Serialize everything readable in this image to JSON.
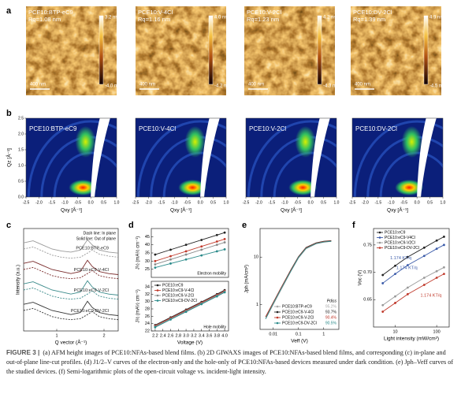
{
  "afm": {
    "panel": "a",
    "images": [
      {
        "label": "PCE10:BTP-eC9",
        "rq": "Rq=1.08 nm",
        "max": "3.2 nm",
        "min": "-4.0 nm",
        "scale": "400 nm"
      },
      {
        "label": "PCE10:V-4Cl",
        "rq": "Rq=1.16 nm",
        "max": "4.0 nm",
        "min": "-4.2 nm",
        "scale": "400 nm"
      },
      {
        "label": "PCE10:V-2Cl",
        "rq": "Rq=1.23 nm",
        "max": "4.2 nm",
        "min": "-4.3 nm",
        "scale": "400 nm"
      },
      {
        "label": "PCE10:DV-2Cl",
        "rq": "Rq=1.39 nm",
        "max": "4.9 nm",
        "min": "-4.5 nm",
        "scale": "400 nm"
      }
    ]
  },
  "giwaxs": {
    "panel": "b",
    "xlabel": "Qxy [Å⁻¹]",
    "ylabel": "Qz [Å⁻¹]",
    "xlim": [
      -2.5,
      1.0
    ],
    "ylim": [
      0,
      2.5
    ],
    "xticks": [
      -2.5,
      {
        "value": -2,
        "label": "-2.0"
      },
      -1.5,
      {
        "value": -1,
        "label": "-1.0"
      },
      -0.5,
      {
        "value": 0,
        "label": "0.0"
      },
      0.5,
      {
        "value": 1,
        "label": "1.0"
      }
    ],
    "yticks": [
      {
        "value": 0,
        "label": "0.0"
      },
      0.5,
      {
        "value": 1,
        "label": "1.0"
      },
      1.5,
      {
        "value": 2,
        "label": "2.0"
      },
      2.5
    ],
    "images": [
      "PCE10:BTP-eC9",
      "PCE10:V-4Cl",
      "PCE10:V-2Cl",
      "PCE10:DV-2Cl"
    ]
  },
  "chart_data": [
    {
      "type": "line",
      "panel": "c",
      "xlabel": "Q vector (Å⁻¹)",
      "ylabel": "Intensity (a.u.)",
      "legend": "inline",
      "notes": [
        "Dash line: In plane",
        "Solid line: Out of plane"
      ],
      "x": [
        0.3,
        0.5,
        0.7,
        0.9,
        1.1,
        1.3,
        1.5,
        1.65,
        1.75,
        1.9,
        2.1,
        2.3
      ],
      "xlim": [
        0.3,
        2.3
      ],
      "xticks": [
        1,
        2
      ],
      "ylim": [
        0,
        10
      ],
      "series": [
        {
          "name": "PCE10:BTP-eC9",
          "color": "#9a9a9a",
          "values": [
            8.6,
            8.8,
            8.4,
            8.0,
            7.8,
            7.7,
            7.9,
            8.9,
            8.4,
            7.9,
            7.7,
            7.6
          ]
        },
        {
          "color": "#9a9a9a",
          "dash": true,
          "values": [
            8.0,
            8.2,
            7.8,
            7.4,
            7.2,
            7.1,
            7.2,
            7.6,
            7.9,
            7.5,
            7.3,
            7.2
          ]
        },
        {
          "name": "PCE10:eC9-V-4Cl",
          "color": "#7a2b2b",
          "values": [
            6.6,
            6.8,
            6.4,
            6.0,
            5.8,
            5.6,
            5.8,
            6.9,
            6.3,
            5.8,
            5.6,
            5.5
          ]
        },
        {
          "color": "#7a2b2b",
          "dash": true,
          "values": [
            6.0,
            6.2,
            5.8,
            5.4,
            5.2,
            5.1,
            5.2,
            5.6,
            5.9,
            5.4,
            5.2,
            5.1
          ]
        },
        {
          "name": "PCE10:eC9-V-2Cl",
          "color": "#3a8a8a",
          "values": [
            4.6,
            4.8,
            4.4,
            4.0,
            3.8,
            3.6,
            3.8,
            4.9,
            4.3,
            3.8,
            3.6,
            3.5
          ]
        },
        {
          "color": "#3a8a8a",
          "dash": true,
          "values": [
            4.0,
            4.2,
            3.8,
            3.4,
            3.2,
            3.1,
            3.2,
            3.6,
            3.9,
            3.4,
            3.2,
            3.1
          ]
        },
        {
          "name": "PCE10:eC9-DV-2Cl",
          "color": "#333333",
          "values": [
            2.6,
            2.8,
            2.4,
            2.0,
            1.8,
            1.6,
            1.8,
            2.9,
            2.3,
            1.8,
            1.6,
            1.5
          ]
        },
        {
          "color": "#333333",
          "dash": true,
          "values": [
            2.0,
            2.2,
            1.8,
            1.4,
            1.2,
            1.1,
            1.2,
            1.6,
            1.9,
            1.4,
            1.2,
            1.1
          ]
        }
      ]
    },
    {
      "type": "line",
      "panel": "d",
      "ylabel": "J½ (mA½ cm⁻¹)",
      "markers": true,
      "notes": [
        "Electron mobility"
      ],
      "x": [
        2.2,
        2.6,
        3.0,
        3.4,
        3.8,
        4.0
      ],
      "xlim": [
        2.1,
        4.1
      ],
      "ylim": [
        20,
        50
      ],
      "yticks": [
        25,
        30,
        35,
        40,
        45
      ],
      "series": [
        {
          "color": "#222222",
          "values": [
            34,
            37,
            40,
            43,
            46,
            47.5
          ]
        },
        {
          "color": "#c0392b",
          "values": [
            30,
            33,
            36,
            39,
            42,
            43.5
          ]
        },
        {
          "color": "#888888",
          "values": [
            28,
            31,
            34,
            37,
            40,
            41.5
          ]
        },
        {
          "color": "#2a8a8a",
          "values": [
            26,
            28.5,
            31,
            33.5,
            36,
            37.2
          ]
        }
      ]
    },
    {
      "type": "line",
      "xlabel": "Voltage (V)",
      "ylabel": "J½ (mA½ cm⁻¹)",
      "markers": true,
      "legend": "upper left",
      "notes": [
        "Hole mobility"
      ],
      "x": [
        2.2,
        2.6,
        3.0,
        3.4,
        3.8,
        4.0
      ],
      "xlim": [
        2.1,
        4.1
      ],
      "ylim": [
        22,
        35.5
      ],
      "yticks": [
        22,
        24,
        26,
        28,
        30,
        32,
        34
      ],
      "xticks": [
        2.2,
        2.4,
        2.6,
        2.8,
        {
          "value": 3,
          "label": "3.0"
        },
        3.2,
        3.4,
        3.6,
        3.8,
        {
          "value": 4,
          "label": "4.0"
        }
      ],
      "series": [
        {
          "name": "PCE10:eC9",
          "color": "#222222",
          "values": [
            23.6,
            25.7,
            27.8,
            29.9,
            32.0,
            33.1
          ]
        },
        {
          "name": "PCE10:eC9-V-4Cl",
          "color": "#c0392b",
          "values": [
            23.4,
            25.5,
            27.6,
            29.7,
            31.8,
            32.9
          ]
        },
        {
          "name": "PCE10:eC9-V-2Cl",
          "color": "#888888",
          "values": [
            23.2,
            25.3,
            27.4,
            29.5,
            31.6,
            32.7
          ]
        },
        {
          "name": "PCE10:eC9-DV-2Cl",
          "color": "#2a8a8a",
          "values": [
            23.0,
            25.1,
            27.2,
            29.3,
            31.4,
            32.5
          ]
        }
      ]
    },
    {
      "type": "line",
      "panel": "e",
      "xlabel": "Veff (V)",
      "ylabel": "Jph (mA/cm²)",
      "xlog": true,
      "ylog": true,
      "legend": "lower right",
      "legend_notes_title": "Pdiss",
      "legend_notes": [
        "95.2%",
        "93.7%",
        "90.4%",
        "90.5%"
      ],
      "x": [
        0.005,
        0.01,
        0.02,
        0.05,
        0.1,
        0.2,
        0.5,
        1,
        2
      ],
      "xlim": [
        0.003,
        4
      ],
      "ylim": [
        0.3,
        40
      ],
      "xticks": [
        0.01,
        0.1,
        1
      ],
      "yticks": [
        1,
        10
      ],
      "series": [
        {
          "name": "PCE10:BTP-eC9",
          "color": "#aaaaaa",
          "values": [
            0.5,
            1.0,
            2.0,
            5.0,
            9.5,
            15,
            19,
            20.5,
            21.5
          ]
        },
        {
          "name": "PCE10:eC9-V-4Cl",
          "color": "#222222",
          "values": [
            0.55,
            1.1,
            2.2,
            5.4,
            10.2,
            16,
            20,
            21.5,
            22.3
          ]
        },
        {
          "name": "PCE10:eC9-V-2Cl",
          "color": "#c0392b",
          "values": [
            0.55,
            1.1,
            2.2,
            5.3,
            10,
            15.7,
            19.7,
            21.2,
            22
          ]
        },
        {
          "name": "PCE10:eC9-DV-2Cl",
          "color": "#2a8a8a",
          "values": [
            0.5,
            1.05,
            2.1,
            5.1,
            9.8,
            15.3,
            19.3,
            20.8,
            21.6
          ]
        }
      ]
    },
    {
      "type": "line",
      "panel": "f",
      "xlabel": "Light intensity (mW/cm²)",
      "ylabel": "Voc (V)",
      "xlog": true,
      "markers": true,
      "legend": "upper left",
      "annotations": [
        {
          "text": "1.174 KT/q",
          "color": "#3b5ba9"
        },
        {
          "text": "1.174 KT/q",
          "color": "#3b5ba9"
        },
        {
          "text": "1.174 KT/q",
          "color": "#c0392b"
        }
      ],
      "x": [
        5,
        10,
        20,
        50,
        100,
        150
      ],
      "xlim": [
        3,
        200
      ],
      "ylim": [
        0.6,
        0.78
      ],
      "xticks": [
        10,
        100
      ],
      "yticks": [
        0.65,
        {
          "value": 0.7,
          "label": "0.70"
        },
        0.75
      ],
      "series": [
        {
          "name": "PCE10:eC9",
          "color": "#222222",
          "values": [
            0.695,
            0.712,
            0.728,
            0.745,
            0.758,
            0.765
          ]
        },
        {
          "name": "PCE10:eC9-V4Cl",
          "color": "#3b5ba9",
          "values": [
            0.68,
            0.697,
            0.713,
            0.73,
            0.743,
            0.75
          ]
        },
        {
          "name": "PCE10:eC9-V2Cl",
          "color": "#999999",
          "values": [
            0.64,
            0.656,
            0.672,
            0.69,
            0.702,
            0.709
          ]
        },
        {
          "name": "PCE10:eC9-DV-2Cl",
          "color": "#c0392b",
          "values": [
            0.628,
            0.644,
            0.66,
            0.677,
            0.69,
            0.697
          ]
        }
      ]
    }
  ],
  "caption": {
    "label": "FIGURE 3 |",
    "text": "(a) AFM height images of PCE10:NFAs-based blend films. (b) 2D GIWAXS images of PCE10:NFAs-based blend films, and corresponding (c) in-plane and out-of-plane line-cut profiles. (d) J1/2–V curves of the electron-only and the hole-only of PCE10:NFAs-based devices measured under dark condition. (e) Jph–Veff curves of the studied devices. (f) Semi-logarithmic plots of the open-circuit voltage vs. incident-light intensity."
  }
}
